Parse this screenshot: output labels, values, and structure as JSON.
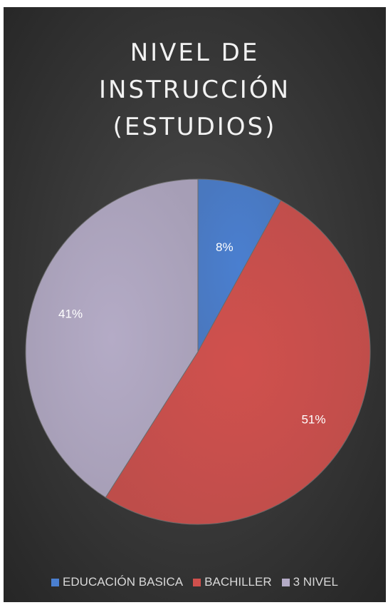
{
  "chart_data": {
    "type": "pie",
    "title_lines": [
      "NIVEL DE",
      "INSTRUCCIÓN",
      "(ESTUDIOS)"
    ],
    "categories": [
      "EDUCACIÓN BASICA",
      "BACHILLER",
      "3 NIVEL"
    ],
    "values": [
      8,
      51,
      41
    ],
    "labels": [
      "8%",
      "51%",
      "41%"
    ],
    "colors": [
      "#4a7fd0",
      "#d0504d",
      "#b4abc6"
    ],
    "start_angle": "12 o'clock",
    "direction": "clockwise",
    "legend_position": "bottom",
    "background": "#3a3a3a"
  }
}
